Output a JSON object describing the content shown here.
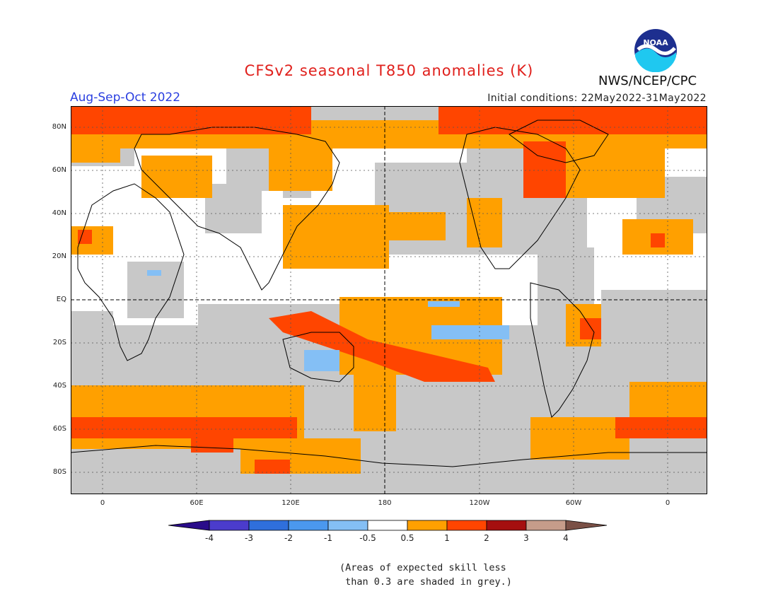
{
  "title": "CFSv2 seasonal T850 anomalies (K)",
  "organization": "NWS/NCEP/CPC",
  "logo_text": "NOAA",
  "season": "Aug-Sep-Oct 2022",
  "initial_conditions": "Initial conditions: 22May2022-31May2022",
  "lat_labels": [
    "80N",
    "60N",
    "40N",
    "20N",
    "EQ",
    "20S",
    "40S",
    "60S",
    "80S"
  ],
  "lon_labels": [
    "0",
    "60E",
    "120E",
    "180",
    "120W",
    "60W",
    "0"
  ],
  "colorbar": {
    "ticks": [
      "-4",
      "-3",
      "-2",
      "-1",
      "-0.5",
      "0.5",
      "1",
      "2",
      "3",
      "4"
    ],
    "colors": [
      "#2a0c8a",
      "#4b3ccc",
      "#2f6fdc",
      "#4b98ee",
      "#84bff5",
      "#ffffff",
      "#ffa000",
      "#ff4500",
      "#a50f0f",
      "#c69c8a",
      "#7a5046"
    ]
  },
  "colors": {
    "skill_mask": "#c8c8c8",
    "anom_0_5_1": "#ffa000",
    "anom_1_2": "#ff4500",
    "anom_2_3": "#a50f0f",
    "neg_0_5_1": "#84bff5",
    "title": "#e0201c",
    "season": "#2a3fe0"
  },
  "note_lines": [
    "(Areas of expected skill less",
    " than 0.3 are shaded in grey.)"
  ]
}
